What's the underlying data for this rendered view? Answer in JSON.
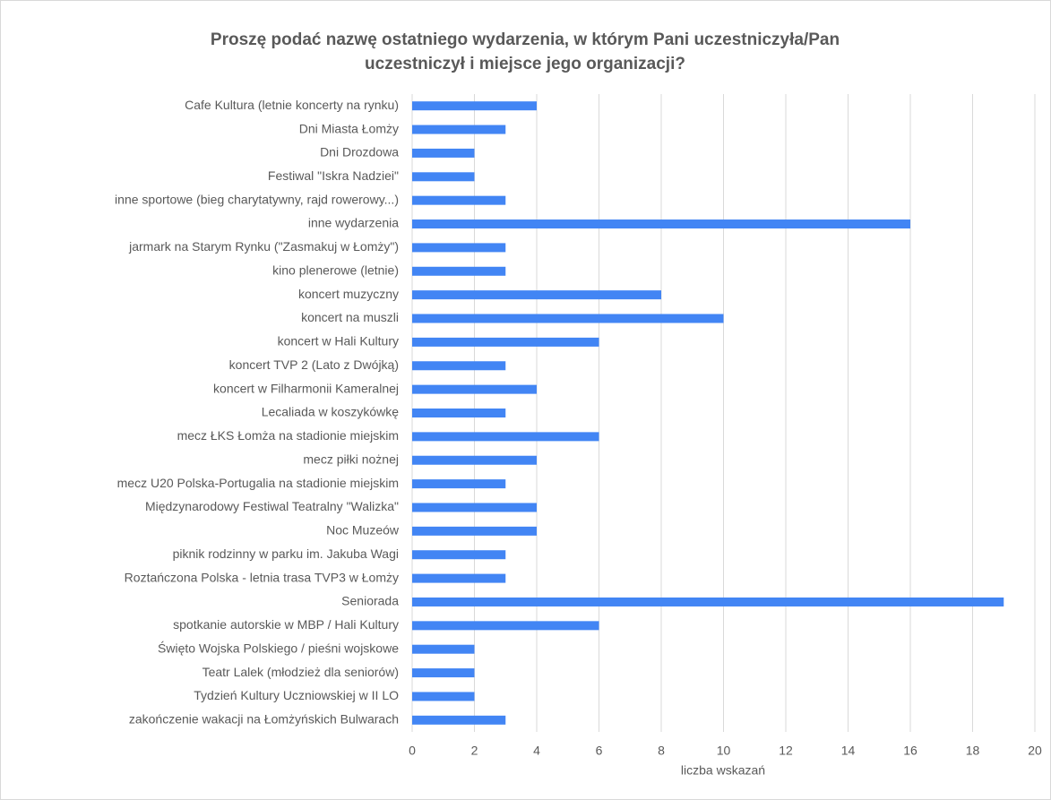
{
  "chart_data": {
    "type": "bar",
    "orientation": "horizontal",
    "title": "Proszę podać nazwę ostatniego wydarzenia, w którym Pani uczestniczyła/Pan",
    "subtitle": "uczestniczył i miejsce jego organizacji?",
    "x_label": "liczba wskazań",
    "categories": [
      "Cafe Kultura (letnie koncerty na rynku)",
      "Dni Miasta Łomży",
      "Dni Drozdowa",
      "Festiwal \"Iskra Nadziei\"",
      "inne sportowe (bieg charytatywny, rajd rowerowy...)",
      "inne wydarzenia",
      "jarmark na Starym Rynku (\"Zasmakuj w Łomży\")",
      "kino plenerowe (letnie)",
      "koncert muzyczny",
      "koncert na muszli",
      "koncert w Hali Kultury",
      "koncert TVP 2 (Lato z Dwójką)",
      "koncert w Filharmonii Kameralnej",
      "Lecaliada w koszykówkę",
      "mecz ŁKS Łomża na stadionie miejskim ",
      "mecz piłki nożnej",
      "mecz U20 Polska-Portugalia na stadionie miejskim",
      "Międzynarodowy Festiwal Teatralny \"Walizka\"",
      "Noc Muzeów",
      "piknik rodzinny w parku im. Jakuba Wagi",
      "Roztańczona Polska - letnia trasa TVP3 w Łomży",
      "Seniorada",
      "spotkanie autorskie w MBP / Hali Kultury",
      "Święto Wojska Polskiego / pieśni wojskowe",
      "Teatr Lalek (młodzież dla seniorów)",
      "Tydzień Kultury Uczniowskiej w II LO",
      "zakończenie wakacji na Łomżyńskich Bulwarach"
    ],
    "values": [
      4,
      3,
      2,
      2,
      3,
      16,
      3,
      3,
      8,
      10,
      6,
      3,
      4,
      3,
      6,
      4,
      3,
      4,
      4,
      3,
      3,
      19,
      6,
      2,
      2,
      2,
      3
    ],
    "color": "#4285f4",
    "xlim": [
      0,
      20
    ],
    "xticks": [
      0,
      2,
      4,
      6,
      8,
      10,
      12,
      14,
      16,
      18,
      20
    ],
    "grid": true
  }
}
